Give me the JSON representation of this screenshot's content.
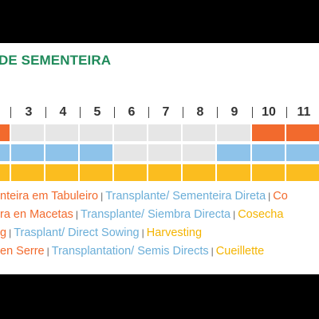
{
  "title": "DE SEMENTEIRA",
  "months": [
    "3",
    "4",
    "5",
    "6",
    "7",
    "8",
    "9",
    "10",
    "11"
  ],
  "colors": {
    "sowing": "#f26a2d",
    "transplant": "#8ec3ea",
    "harvest": "#fbbd1f",
    "empty": "#e6e6e6",
    "title": "#1f8a5a"
  },
  "calendar": {
    "sowing_months": [
      2,
      10,
      11
    ],
    "transplant_months": [
      2,
      3,
      4,
      5,
      9,
      10,
      11
    ],
    "harvest_months": [
      2,
      3,
      4,
      5,
      6,
      7,
      8,
      9,
      10,
      11
    ]
  },
  "legend": [
    {
      "sow": "nteira em Tabuleiro",
      "transplant": "Transplante/ Sementeira Direta",
      "harvest": "Co"
    },
    {
      "sow": "ra en Macetas",
      "transplant": "Transplante/ Siembra Directa",
      "harvest": "Cosecha"
    },
    {
      "sow": "g",
      "transplant": "Trasplant/ Direct Sowing",
      "harvest": "Harvesting"
    },
    {
      "sow": "en Serre",
      "transplant": "Transplantation/ Semis Directs",
      "harvest": "Cueillette"
    }
  ],
  "separator": "|"
}
